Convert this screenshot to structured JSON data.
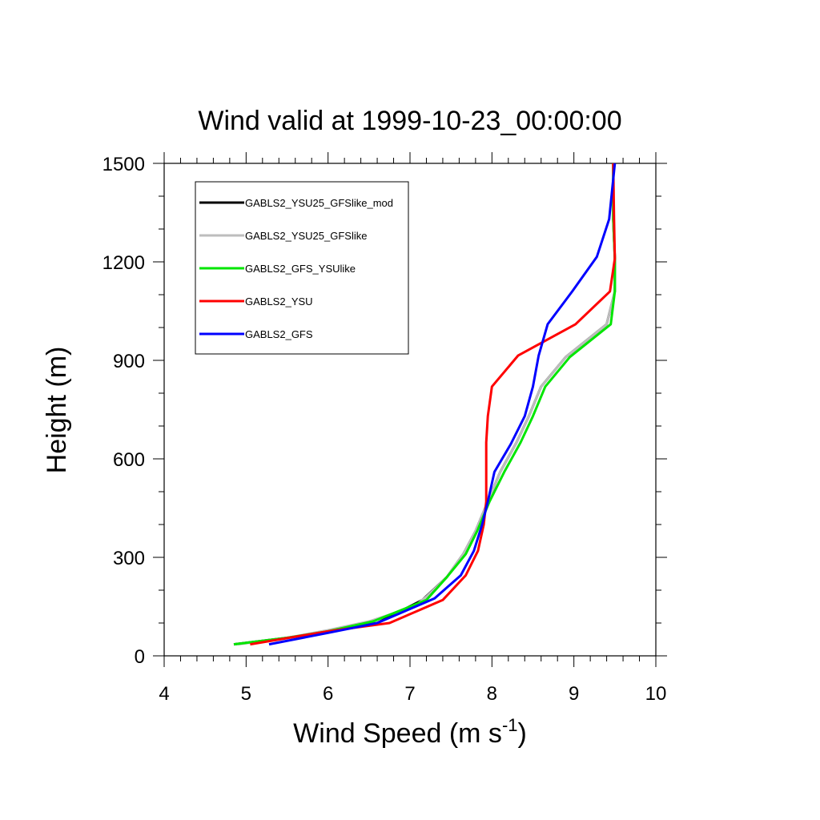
{
  "chart_data": {
    "type": "line",
    "title": "Wind valid at 1999-10-23_00:00:00",
    "xlabel": "Wind Speed (m s",
    "xlabel_superscript": "-1",
    "xlabel_close": ")",
    "ylabel": "Height (m)",
    "xlim": [
      4,
      10
    ],
    "ylim": [
      0,
      1500
    ],
    "xticks": [
      4,
      5,
      6,
      7,
      8,
      9,
      10
    ],
    "yticks": [
      0,
      300,
      600,
      900,
      1200,
      1500
    ],
    "legend_position": "top-left",
    "series": [
      {
        "name": "GABLS2_YSU25_GFSlike_mod",
        "color": "#000000",
        "points": [
          [
            4.85,
            35
          ],
          [
            5.5,
            55
          ],
          [
            6.0,
            75
          ],
          [
            6.6,
            100
          ],
          [
            7.15,
            170
          ],
          [
            7.45,
            240
          ],
          [
            7.65,
            310
          ],
          [
            7.8,
            380
          ],
          [
            7.95,
            470
          ],
          [
            8.1,
            560
          ],
          [
            8.3,
            650
          ],
          [
            8.45,
            730
          ],
          [
            8.6,
            820
          ],
          [
            8.9,
            910
          ],
          [
            9.4,
            1010
          ],
          [
            9.5,
            1110
          ],
          [
            9.5,
            1210
          ],
          [
            9.48,
            1330
          ],
          [
            9.48,
            1500
          ]
        ]
      },
      {
        "name": "GABLS2_YSU25_GFSlike",
        "color": "#bdbdbd",
        "points": [
          [
            4.9,
            35
          ],
          [
            5.5,
            55
          ],
          [
            6.0,
            78
          ],
          [
            6.5,
            105
          ],
          [
            7.05,
            150
          ],
          [
            7.2,
            180
          ],
          [
            7.45,
            240
          ],
          [
            7.65,
            310
          ],
          [
            7.8,
            380
          ],
          [
            7.95,
            470
          ],
          [
            8.1,
            560
          ],
          [
            8.3,
            650
          ],
          [
            8.45,
            730
          ],
          [
            8.6,
            820
          ],
          [
            8.9,
            910
          ],
          [
            9.4,
            1010
          ],
          [
            9.5,
            1110
          ],
          [
            9.5,
            1210
          ],
          [
            9.48,
            1330
          ],
          [
            9.48,
            1500
          ]
        ]
      },
      {
        "name": "GABLS2_GFS_YSUlike",
        "color": "#00e600",
        "points": [
          [
            4.85,
            35
          ],
          [
            5.5,
            55
          ],
          [
            6.0,
            75
          ],
          [
            6.55,
            105
          ],
          [
            7.2,
            170
          ],
          [
            7.45,
            240
          ],
          [
            7.68,
            310
          ],
          [
            7.82,
            380
          ],
          [
            7.97,
            470
          ],
          [
            8.15,
            560
          ],
          [
            8.35,
            650
          ],
          [
            8.5,
            730
          ],
          [
            8.65,
            820
          ],
          [
            8.95,
            910
          ],
          [
            9.45,
            1010
          ],
          [
            9.5,
            1110
          ],
          [
            9.5,
            1210
          ],
          [
            9.48,
            1330
          ],
          [
            9.48,
            1500
          ]
        ]
      },
      {
        "name": "GABLS2_YSU",
        "color": "#ff0000",
        "points": [
          [
            5.05,
            35
          ],
          [
            6.0,
            75
          ],
          [
            6.75,
            100
          ],
          [
            7.4,
            170
          ],
          [
            7.68,
            245
          ],
          [
            7.83,
            320
          ],
          [
            7.9,
            400
          ],
          [
            7.93,
            470
          ],
          [
            7.93,
            560
          ],
          [
            7.93,
            650
          ],
          [
            7.95,
            730
          ],
          [
            8.0,
            820
          ],
          [
            8.32,
            915
          ],
          [
            9.02,
            1010
          ],
          [
            9.44,
            1110
          ],
          [
            9.5,
            1210
          ],
          [
            9.49,
            1330
          ],
          [
            9.48,
            1500
          ]
        ]
      },
      {
        "name": "GABLS2_GFS",
        "color": "#0000ff",
        "points": [
          [
            5.28,
            35
          ],
          [
            6.0,
            70
          ],
          [
            6.6,
            100
          ],
          [
            7.3,
            175
          ],
          [
            7.62,
            245
          ],
          [
            7.78,
            320
          ],
          [
            7.88,
            400
          ],
          [
            7.95,
            470
          ],
          [
            8.03,
            560
          ],
          [
            8.23,
            645
          ],
          [
            8.4,
            730
          ],
          [
            8.5,
            820
          ],
          [
            8.57,
            915
          ],
          [
            8.68,
            1010
          ],
          [
            8.98,
            1110
          ],
          [
            9.28,
            1215
          ],
          [
            9.43,
            1330
          ],
          [
            9.5,
            1500
          ]
        ]
      }
    ]
  }
}
